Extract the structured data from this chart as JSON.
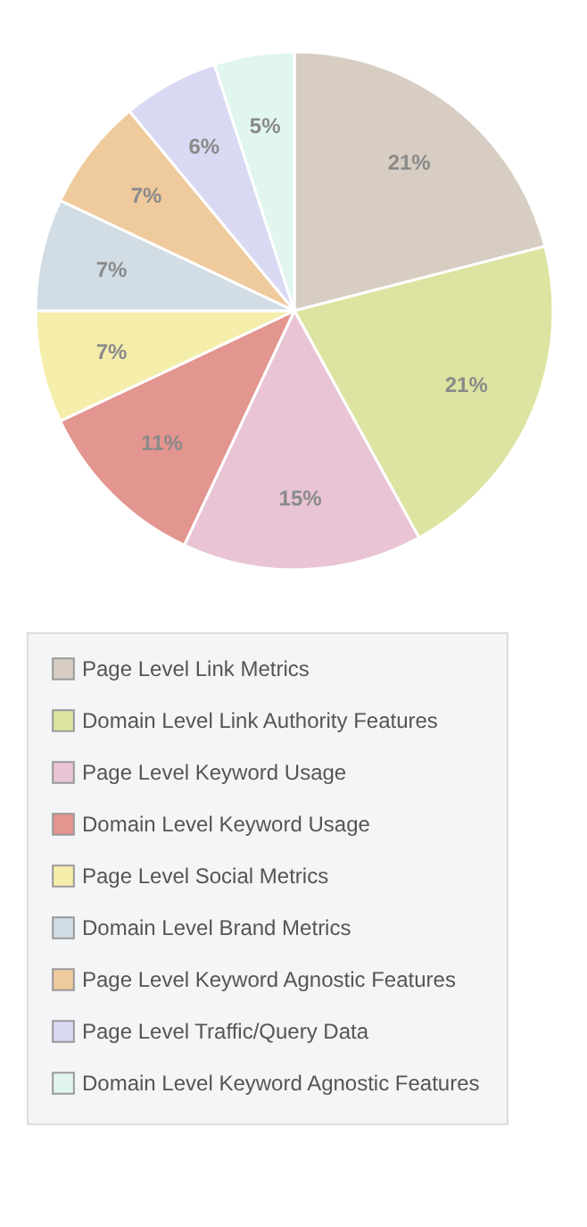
{
  "chart_data": {
    "type": "pie",
    "categories": [
      "Page Level Link Metrics",
      "Domain Level Link Authority Features",
      "Page Level Keyword Usage",
      "Domain Level Keyword Usage",
      "Page Level Social Metrics",
      "Domain Level Brand Metrics",
      "Page Level Keyword Agnostic Features",
      "Page Level Traffic/Query Data",
      "Domain Level Keyword Agnostic Features"
    ],
    "values": [
      21,
      21,
      15,
      11,
      7,
      7,
      7,
      6,
      5
    ],
    "value_labels": [
      "21%",
      "21%",
      "15%",
      "11%",
      "7%",
      "7%",
      "7%",
      "6%",
      "5%"
    ],
    "colors": [
      "#d7cdc2",
      "#dde4a2",
      "#e8c4d4",
      "#e3958f",
      "#f5eeab",
      "#d1dce4",
      "#efca9c",
      "#d9d9f3",
      "#e0f6ef"
    ],
    "legend": "bottom"
  }
}
